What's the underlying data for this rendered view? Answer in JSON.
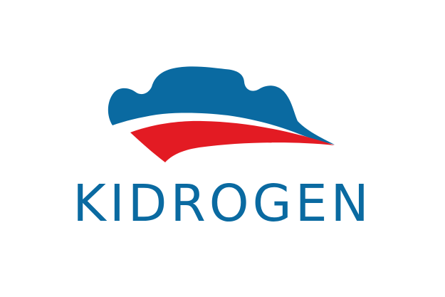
{
  "brand": {
    "name": "KIDROGEN",
    "colors": {
      "blue": "#0a6aa1",
      "red": "#e31b23",
      "background": "#ffffff"
    },
    "mark_icon": "cloud-swoosh-icon"
  }
}
